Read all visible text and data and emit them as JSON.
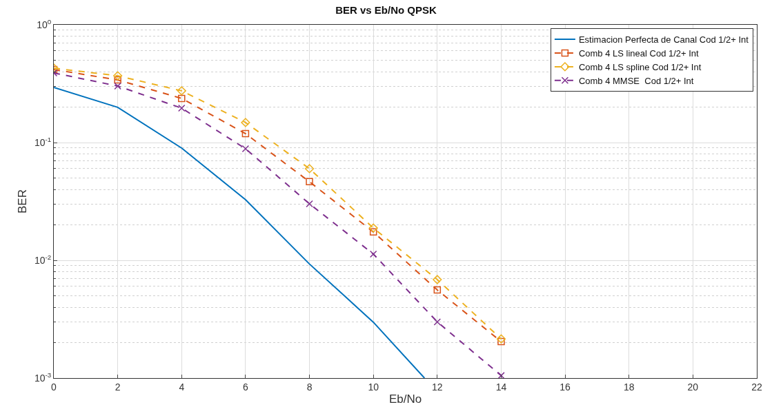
{
  "chart_data": {
    "type": "line",
    "title": "BER vs Eb/No QPSK",
    "xlabel": "Eb/No",
    "ylabel": "BER",
    "log": "y",
    "grid": true,
    "legend": "top right",
    "xlim": [
      0,
      22
    ],
    "xticks": [
      0,
      2,
      4,
      6,
      8,
      10,
      12,
      14,
      16,
      18,
      20,
      22
    ],
    "ylim": [
      0.001,
      1
    ],
    "yticks": [
      {
        "value": 0.001,
        "label": "10$^{-3}$"
      },
      {
        "value": 0.01,
        "label": "10$^{-2}$"
      },
      {
        "value": 0.1,
        "label": "10$^{-1}$"
      },
      {
        "value": 1,
        "label": "10$^{0}$"
      }
    ],
    "series": [
      {
        "name": "Estimacion Perfecta de Canal Cod 1/2+ Int",
        "color": "#0072bd",
        "marker": "none",
        "line_style": "solid",
        "x": [
          0,
          2,
          4,
          6,
          8,
          10,
          11.6
        ],
        "values": [
          0.294,
          0.199,
          0.0898,
          0.0327,
          0.0093,
          0.00298,
          0.001
        ]
      },
      {
        "name": "Comb 4 LS lineal Cod 1/2+ Int",
        "color": "#d95319",
        "marker": "square",
        "line_style": "dashed",
        "x": [
          0,
          2,
          4,
          6,
          8,
          10,
          12,
          14
        ],
        "values": [
          0.417,
          0.34,
          0.237,
          0.119,
          0.0465,
          0.0174,
          0.0056,
          0.00204
        ]
      },
      {
        "name": "Comb 4 LS spline Cod 1/2+ Int",
        "color": "#edb120",
        "marker": "diamond",
        "line_style": "dashed",
        "x": [
          0,
          2,
          4,
          6,
          8,
          10,
          12,
          14
        ],
        "values": [
          0.428,
          0.369,
          0.275,
          0.148,
          0.06,
          0.0188,
          0.00686,
          0.00215
        ]
      },
      {
        "name": "Comb 4 MMSE  Cod 1/2+ Int",
        "color": "#7e2f8e",
        "marker": "cross",
        "line_style": "dashed",
        "x": [
          0,
          2,
          4,
          6,
          8,
          10,
          12,
          14
        ],
        "values": [
          0.39,
          0.302,
          0.196,
          0.0886,
          0.0302,
          0.0113,
          0.003,
          0.00105
        ]
      }
    ]
  }
}
